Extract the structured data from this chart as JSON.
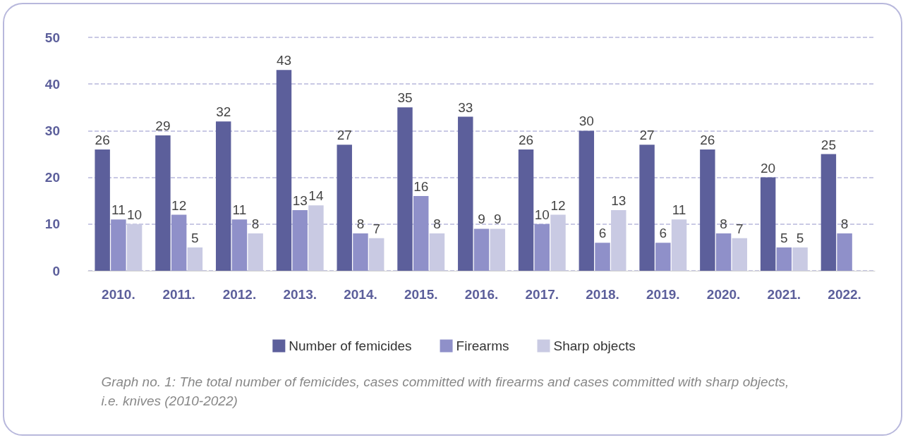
{
  "chart_data": {
    "type": "bar",
    "categories": [
      "2010.",
      "2011.",
      "2012.",
      "2013.",
      "2014.",
      "2015.",
      "2016.",
      "2017.",
      "2018.",
      "2019.",
      "2020.",
      "2021.",
      "2022."
    ],
    "series": [
      {
        "name": "Number of femicides",
        "color": "#5c5f9b",
        "values": [
          26,
          29,
          32,
          43,
          27,
          35,
          33,
          26,
          30,
          27,
          26,
          20,
          25
        ]
      },
      {
        "name": "Firearms",
        "color": "#8f90c9",
        "values": [
          11,
          12,
          11,
          13,
          8,
          16,
          9,
          10,
          6,
          6,
          8,
          5,
          8
        ]
      },
      {
        "name": "Sharp objects",
        "color": "#c9cae3",
        "values": [
          10,
          5,
          8,
          14,
          7,
          8,
          9,
          12,
          13,
          11,
          7,
          5,
          null
        ]
      }
    ],
    "ylim": [
      0,
      50
    ],
    "yticks": [
      0,
      10,
      20,
      30,
      40,
      50
    ],
    "grid": "y",
    "legend": "bottom",
    "data_labels": true,
    "annotations": [
      "Graph no. 1: The total number of femicides, cases committed with firearms and cases committed with sharp objects, i.e. knives (2010-2022)"
    ]
  }
}
